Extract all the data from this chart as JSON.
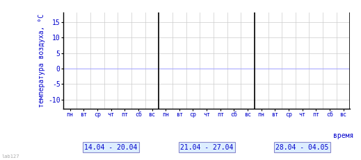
{
  "title": "",
  "ylabel": "температура воздуха, °С",
  "xlabel": "время",
  "ylim": [
    -13,
    18
  ],
  "yticks": [
    -10,
    -5,
    0,
    5,
    10,
    15
  ],
  "weeks": [
    {
      "label": "14.04 - 20.04",
      "days": [
        "пн",
        "вт",
        "ср",
        "чт",
        "пт",
        "сб",
        "вс"
      ]
    },
    {
      "label": "21.04 - 27.04",
      "days": [
        "пн",
        "вт",
        "ср",
        "чт",
        "пт",
        "сб",
        "вс"
      ]
    },
    {
      "label": "28.04 - 04.05",
      "days": [
        "пн",
        "вт",
        "ср",
        "чт",
        "пт",
        "сб",
        "вс"
      ]
    }
  ],
  "bg_color": "#ffffff",
  "grid_color": "#cccccc",
  "axis_color": "#000000",
  "text_color": "#0000cc",
  "zero_line_color": "#aaaaff",
  "separator_color": "#000000",
  "week_label_bg": "#ddeeff",
  "week_label_border": "#8888cc",
  "font_size": 7,
  "ylabel_fontsize": 7,
  "xlabel_fontsize": 7,
  "num_weeks": 3,
  "days_per_week": 7,
  "watermark": "lab127",
  "watermark_color": "#aaaaaa"
}
